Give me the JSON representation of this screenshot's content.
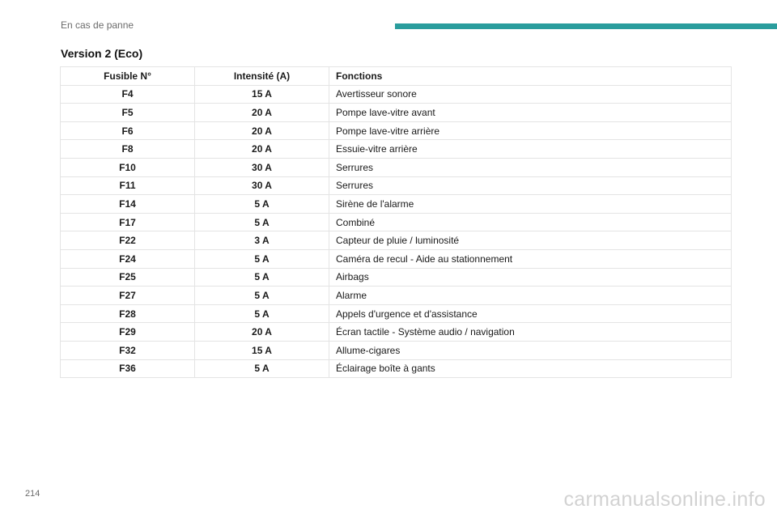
{
  "header": {
    "section": "En cas de panne",
    "accent_color": "#2a9d9d"
  },
  "title": "Version 2 (Eco)",
  "table": {
    "columns": [
      "Fusible N°",
      "Intensité (A)",
      "Fonctions"
    ],
    "rows": [
      [
        "F4",
        "15 A",
        "Avertisseur sonore"
      ],
      [
        "F5",
        "20 A",
        "Pompe lave-vitre avant"
      ],
      [
        "F6",
        "20 A",
        "Pompe lave-vitre arrière"
      ],
      [
        "F8",
        "20 A",
        "Essuie-vitre arrière"
      ],
      [
        "F10",
        "30 A",
        "Serrures"
      ],
      [
        "F11",
        "30 A",
        "Serrures"
      ],
      [
        "F14",
        "5 A",
        "Sirène de l'alarme"
      ],
      [
        "F17",
        "5 A",
        "Combiné"
      ],
      [
        "F22",
        "3 A",
        "Capteur de pluie / luminosité"
      ],
      [
        "F24",
        "5 A",
        "Caméra de recul - Aide au stationnement"
      ],
      [
        "F25",
        "5 A",
        "Airbags"
      ],
      [
        "F27",
        "5 A",
        "Alarme"
      ],
      [
        "F28",
        "5 A",
        "Appels d'urgence et d'assistance"
      ],
      [
        "F29",
        "20 A",
        "Écran tactile - Système audio / navigation"
      ],
      [
        "F32",
        "15 A",
        "Allume-cigares"
      ],
      [
        "F36",
        "5 A",
        "Éclairage boîte à gants"
      ]
    ]
  },
  "footer": {
    "page_number": "214",
    "watermark": "carmanualsonline.info"
  }
}
